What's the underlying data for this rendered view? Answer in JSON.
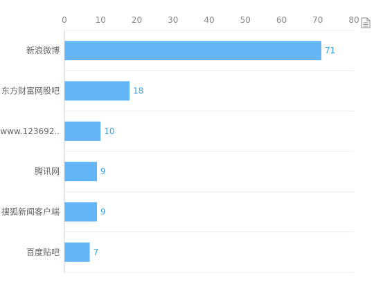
{
  "chart_data": {
    "type": "bar",
    "orientation": "horizontal",
    "title": "",
    "xlabel": "",
    "ylabel": "",
    "xlim": [
      0,
      80
    ],
    "x_ticks": [
      0,
      10,
      20,
      30,
      40,
      50,
      60,
      70,
      80
    ],
    "x_tick_labels": [
      "0",
      "10",
      "20",
      "30",
      "40",
      "50",
      "60",
      "70",
      "80"
    ],
    "x_axis_position": "top",
    "grid": "horizontal separators between categories",
    "bar_color": "#63b5f6",
    "label_color": "#3aa0e8",
    "categories": [
      "新浪微博",
      "东方财富网股吧",
      "www.123692..",
      "腾讯网",
      "搜狐新闻客户端",
      "百度贴吧"
    ],
    "values": [
      71,
      18,
      10,
      9,
      9,
      7
    ],
    "value_labels": [
      "71",
      "18",
      "10",
      "9",
      "9",
      "7"
    ]
  },
  "toolbar": {
    "export_icon": "document-icon"
  }
}
